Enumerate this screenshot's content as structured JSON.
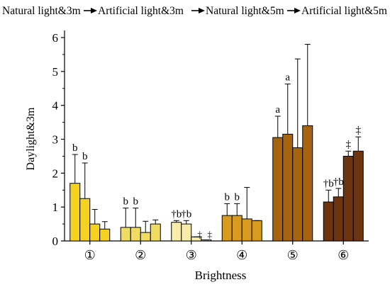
{
  "header": {
    "steps": [
      "Natural light&3m",
      "Artificial light&3m",
      "Natural light&5m",
      "Artificial light&5m"
    ]
  },
  "chart_data": {
    "type": "bar",
    "title": "",
    "xlabel": "Brightness",
    "ylabel": "Daylight&3m",
    "ylim": [
      0,
      6
    ],
    "yticks": [
      "0",
      "1",
      "2",
      "3",
      "4",
      "5",
      "6"
    ],
    "categories": [
      "①",
      "②",
      "③",
      "④",
      "⑤",
      "⑥"
    ],
    "group_colors": [
      "#f5d21f",
      "#f1dc62",
      "#f8ecab",
      "#d79b1d",
      "#a6640f",
      "#6e3410"
    ],
    "groups": [
      {
        "category": "①",
        "values": [
          1.7,
          1.25,
          0.5,
          0.35
        ],
        "errors": [
          0.85,
          1.05,
          0.43,
          0.22
        ],
        "labels": [
          "b",
          "b",
          "",
          ""
        ]
      },
      {
        "category": "②",
        "values": [
          0.4,
          0.4,
          0.25,
          0.5
        ],
        "errors": [
          0.57,
          0.57,
          0.33,
          0.12
        ],
        "labels": [
          "b",
          "b",
          "",
          ""
        ]
      },
      {
        "category": "③",
        "values": [
          0.55,
          0.5,
          0.12,
          0.03
        ],
        "errors": [
          0.05,
          0.1,
          0.0,
          0.0
        ],
        "labels": [
          "†b",
          "†b",
          "‡",
          "‡"
        ]
      },
      {
        "category": "④",
        "values": [
          0.75,
          0.75,
          0.65,
          0.6
        ],
        "errors": [
          0.35,
          0.35,
          0.93,
          0.0
        ],
        "labels": [
          "b",
          "b",
          "",
          ""
        ]
      },
      {
        "category": "⑤",
        "values": [
          3.05,
          3.15,
          2.75,
          3.4
        ],
        "errors": [
          0.63,
          1.48,
          2.62,
          2.4
        ],
        "labels": [
          "a",
          "a",
          "",
          ""
        ]
      },
      {
        "category": "⑥",
        "values": [
          1.15,
          1.3,
          2.5,
          2.65
        ],
        "errors": [
          0.35,
          0.25,
          0.15,
          0.42
        ],
        "labels": [
          "†b",
          "†b",
          "‡",
          "‡"
        ]
      }
    ],
    "grid": false
  }
}
